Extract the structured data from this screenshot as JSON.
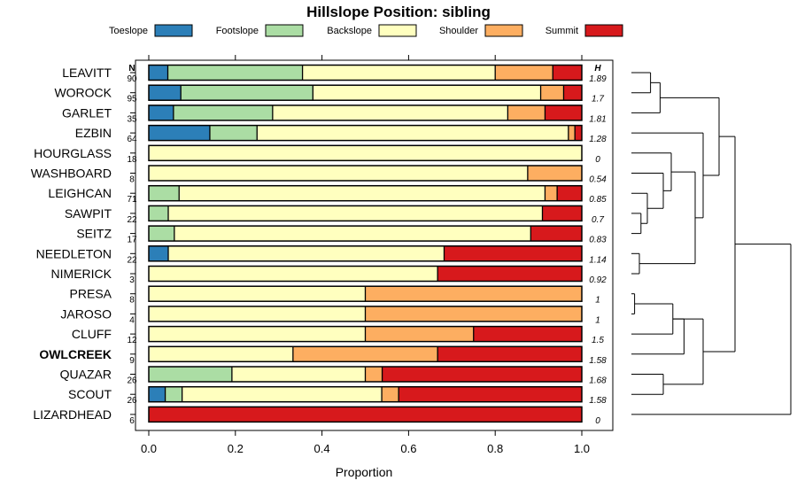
{
  "chart_data": {
    "type": "bar",
    "orientation": "horizontal",
    "stacked": true,
    "title": "Hillslope Position: sibling",
    "xlabel": "Proportion",
    "ylabel": "",
    "xlim": [
      0,
      1
    ],
    "xticks": [
      0,
      0.2,
      0.4,
      0.6,
      0.8,
      1
    ],
    "xtick_labels": [
      "0.0",
      "0.2",
      "0.4",
      "0.6",
      "0.8",
      "1.0"
    ],
    "n_header": "N",
    "h_header": "H",
    "legend": [
      {
        "name": "Toeslope",
        "color": "#2c7fb8"
      },
      {
        "name": "Footslope",
        "color": "#abdda4"
      },
      {
        "name": "Backslope",
        "color": "#ffffbf"
      },
      {
        "name": "Shoulder",
        "color": "#fdae61"
      },
      {
        "name": "Summit",
        "color": "#d7191c"
      }
    ],
    "legend_position": "top",
    "rows": [
      {
        "name": "LEAVITT",
        "bold": false,
        "n": "90",
        "h": "1.89",
        "values": [
          0.044,
          0.311,
          0.445,
          0.133,
          0.067
        ]
      },
      {
        "name": "WOROCK",
        "bold": false,
        "n": "95",
        "h": "1.7",
        "values": [
          0.074,
          0.305,
          0.526,
          0.053,
          0.042
        ]
      },
      {
        "name": "GARLET",
        "bold": false,
        "n": "35",
        "h": "1.81",
        "values": [
          0.057,
          0.229,
          0.543,
          0.086,
          0.085
        ]
      },
      {
        "name": "EZBIN",
        "bold": false,
        "n": "64",
        "h": "1.28",
        "values": [
          0.141,
          0.109,
          0.719,
          0.015,
          0.016
        ]
      },
      {
        "name": "HOURGLASS",
        "bold": false,
        "n": "18",
        "h": "0",
        "values": [
          0,
          0,
          1,
          0,
          0
        ]
      },
      {
        "name": "WASHBOARD",
        "bold": false,
        "n": "8",
        "h": "0.54",
        "values": [
          0,
          0,
          0.875,
          0.125,
          0
        ]
      },
      {
        "name": "LEIGHCAN",
        "bold": false,
        "n": "71",
        "h": "0.85",
        "values": [
          0,
          0.07,
          0.845,
          0.028,
          0.057
        ]
      },
      {
        "name": "SAWPIT",
        "bold": false,
        "n": "22",
        "h": "0.7",
        "values": [
          0,
          0.045,
          0.864,
          0,
          0.091
        ]
      },
      {
        "name": "SEITZ",
        "bold": false,
        "n": "17",
        "h": "0.83",
        "values": [
          0,
          0.059,
          0.823,
          0,
          0.118
        ]
      },
      {
        "name": "NEEDLETON",
        "bold": false,
        "n": "22",
        "h": "1.14",
        "values": [
          0.045,
          0,
          0.637,
          0,
          0.318
        ]
      },
      {
        "name": "NIMERICK",
        "bold": false,
        "n": "3",
        "h": "0.92",
        "values": [
          0,
          0,
          0.667,
          0,
          0.333
        ]
      },
      {
        "name": "PRESA",
        "bold": false,
        "n": "8",
        "h": "1",
        "values": [
          0,
          0,
          0.5,
          0.5,
          0
        ]
      },
      {
        "name": "JAROSO",
        "bold": false,
        "n": "4",
        "h": "1",
        "values": [
          0,
          0,
          0.5,
          0.5,
          0
        ]
      },
      {
        "name": "CLUFF",
        "bold": false,
        "n": "12",
        "h": "1.5",
        "values": [
          0,
          0,
          0.5,
          0.25,
          0.25
        ]
      },
      {
        "name": "OWLCREEK",
        "bold": true,
        "n": "9",
        "h": "1.58",
        "values": [
          0,
          0,
          0.333,
          0.334,
          0.333
        ]
      },
      {
        "name": "QUAZAR",
        "bold": false,
        "n": "26",
        "h": "1.68",
        "values": [
          0,
          0.192,
          0.308,
          0.039,
          0.461
        ]
      },
      {
        "name": "SCOUT",
        "bold": false,
        "n": "26",
        "h": "1.58",
        "values": [
          0.038,
          0.039,
          0.461,
          0.039,
          0.423
        ]
      },
      {
        "name": "LIZARDHEAD",
        "bold": false,
        "n": "6",
        "h": "0",
        "values": [
          0,
          0,
          0,
          0,
          1
        ]
      }
    ],
    "dendrogram": {
      "description": "hierarchical clustering of rows (leaf order top to bottom)",
      "merges": [
        [
          0,
          1,
          0.12
        ],
        [
          0,
          2,
          0.18
        ],
        [
          7,
          8,
          0.06
        ],
        [
          6,
          7,
          0.1
        ],
        [
          5,
          6,
          0.2
        ],
        [
          4,
          5,
          0.25
        ],
        [
          9,
          10,
          0.05
        ],
        [
          4,
          9,
          0.4
        ],
        [
          3,
          4,
          0.45
        ],
        [
          0,
          3,
          0.55
        ],
        [
          11,
          12,
          0.02
        ],
        [
          11,
          13,
          0.26
        ],
        [
          14,
          11,
          0.33
        ],
        [
          15,
          16,
          0.2
        ],
        [
          11,
          15,
          0.45
        ],
        [
          0,
          11,
          0.65
        ],
        [
          0,
          17,
          1.0
        ]
      ]
    }
  }
}
